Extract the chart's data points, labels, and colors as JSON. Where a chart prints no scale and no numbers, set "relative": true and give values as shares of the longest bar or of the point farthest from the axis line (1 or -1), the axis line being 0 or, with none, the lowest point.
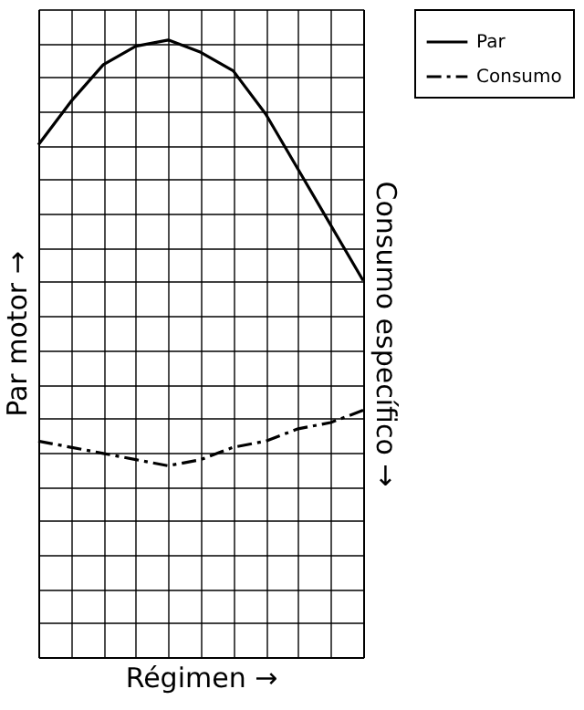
{
  "chart_data": {
    "type": "line",
    "relative": true,
    "xlabel": "Régimen →",
    "ylabel": "Par motor →",
    "y2label": "Consumo específico →",
    "categories": [
      null,
      null,
      null,
      null,
      null,
      null,
      null,
      null,
      null,
      null,
      null
    ],
    "series": [
      {
        "name": "Par",
        "color": "#000000",
        "line_style": "solid",
        "values": [
          0.83,
          0.9,
          0.96,
          0.99,
          1.0,
          0.98,
          0.95,
          0.88,
          0.79,
          0.7,
          0.61
        ]
      },
      {
        "name": "Consumo",
        "color": "#000000",
        "line_style": "dashed",
        "values": [
          0.35,
          0.34,
          0.33,
          0.32,
          0.31,
          0.32,
          0.34,
          0.35,
          0.37,
          0.38,
          0.4
        ]
      }
    ],
    "grid": true,
    "legend": "top right",
    "marker": "none"
  }
}
